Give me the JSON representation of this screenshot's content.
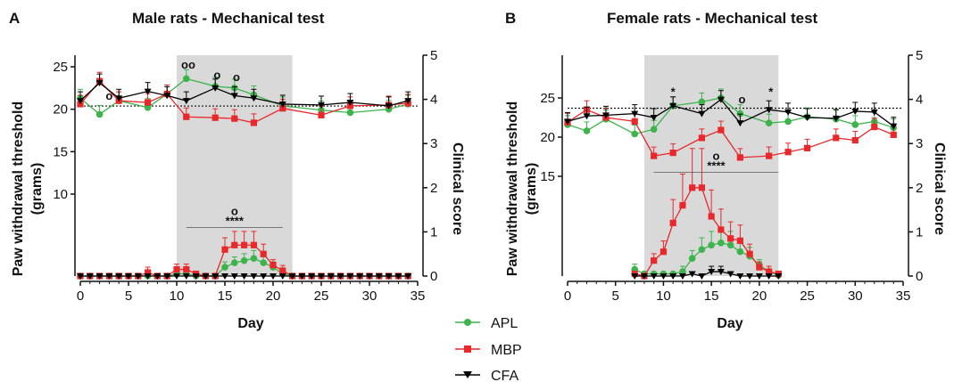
{
  "chart_data": [
    {
      "type": "line",
      "panel_label": "A",
      "title": "Male rats - Mechanical test",
      "xlabel": "Day",
      "ylabel": "Paw withdrawal threshold\n(grams)",
      "y2label": "Clinical score",
      "xlim": [
        0,
        35
      ],
      "xticks": [
        0,
        5,
        10,
        15,
        20,
        25,
        30,
        35
      ],
      "yticks_left": [
        10,
        15,
        20,
        25
      ],
      "yticks_right": [
        0,
        1,
        2,
        3,
        4,
        5
      ],
      "ylim_right": [
        0,
        5
      ],
      "baseline_line_y": 3.85,
      "shaded_region": [
        10,
        22
      ],
      "significance": {
        "x_range": [
          11,
          21
        ],
        "level": 1.1,
        "stars": "****",
        "circle": "o"
      },
      "threshold_series": [
        {
          "name": "APL",
          "x": [
            0,
            2,
            4,
            7,
            9,
            11,
            14,
            16,
            18,
            21,
            25,
            28,
            32,
            34
          ],
          "y": [
            21.3,
            19.4,
            21.0,
            20.2,
            21.8,
            23.6,
            22.7,
            22.5,
            21.7,
            20.4,
            19.9,
            19.6,
            20.0,
            20.6
          ]
        },
        {
          "name": "MBP",
          "x": [
            0,
            2,
            4,
            7,
            9,
            11,
            14,
            16,
            18,
            21,
            25,
            28,
            32,
            34
          ],
          "y": [
            20.6,
            23.3,
            21.0,
            20.8,
            21.8,
            19.1,
            19.0,
            18.9,
            18.4,
            20.1,
            19.3,
            20.4,
            20.5,
            20.7
          ]
        },
        {
          "name": "CFA",
          "x": [
            0,
            2,
            4,
            7,
            9,
            11,
            14,
            16,
            18,
            21,
            25,
            28,
            32,
            34
          ],
          "y": [
            21.0,
            23.1,
            21.3,
            22.1,
            21.6,
            21.0,
            22.5,
            21.6,
            21.3,
            20.6,
            20.5,
            20.8,
            20.4,
            21.0
          ]
        }
      ],
      "threshold_annotations": [
        {
          "x": 3,
          "y": 21.1,
          "text": "o"
        },
        {
          "x": 11.2,
          "y": 24.8,
          "text": "oo"
        },
        {
          "x": 14.2,
          "y": 23.6,
          "text": "o"
        },
        {
          "x": 16.2,
          "y": 23.3,
          "text": "o"
        }
      ],
      "score_series": [
        {
          "name": "APL",
          "x": [
            0,
            1,
            2,
            3,
            4,
            5,
            6,
            7,
            8,
            9,
            10,
            11,
            12,
            13,
            14,
            15,
            16,
            17,
            18,
            19,
            20,
            21,
            22,
            23,
            24,
            25,
            26,
            27,
            28,
            29,
            30,
            31,
            32,
            33,
            34
          ],
          "y": [
            0,
            0,
            0,
            0,
            0,
            0,
            0,
            0,
            0,
            0,
            0.05,
            0.05,
            0,
            0,
            0,
            0.2,
            0.3,
            0.35,
            0.4,
            0.3,
            0.2,
            0.05,
            0,
            0,
            0,
            0,
            0,
            0,
            0,
            0,
            0,
            0,
            0,
            0,
            0
          ]
        },
        {
          "name": "MBP",
          "x": [
            0,
            1,
            2,
            3,
            4,
            5,
            6,
            7,
            8,
            9,
            10,
            11,
            12,
            13,
            14,
            15,
            16,
            17,
            18,
            19,
            20,
            21,
            22,
            23,
            24,
            25,
            26,
            27,
            28,
            29,
            30,
            31,
            32,
            33,
            34
          ],
          "y": [
            0,
            0,
            0,
            0,
            0,
            0,
            0,
            0.08,
            0,
            0,
            0.15,
            0.15,
            0.05,
            0,
            0,
            0.6,
            0.7,
            0.7,
            0.7,
            0.5,
            0.25,
            0.12,
            0,
            0,
            0,
            0,
            0,
            0,
            0,
            0,
            0,
            0,
            0,
            0,
            0
          ]
        },
        {
          "name": "CFA",
          "x": [
            0,
            1,
            2,
            3,
            4,
            5,
            6,
            7,
            8,
            9,
            10,
            11,
            12,
            13,
            14,
            15,
            16,
            17,
            18,
            19,
            20,
            21,
            22,
            23,
            24,
            25,
            26,
            27,
            28,
            29,
            30,
            31,
            32,
            33,
            34
          ],
          "y": [
            0,
            0,
            0,
            0,
            0,
            0,
            0,
            0,
            0,
            0,
            0,
            0,
            0,
            0,
            0,
            0,
            0,
            0,
            0,
            0,
            0,
            0,
            0,
            0,
            0,
            0,
            0,
            0,
            0,
            0,
            0,
            0,
            0,
            0,
            0
          ]
        }
      ]
    },
    {
      "type": "line",
      "panel_label": "B",
      "title": "Female rats - Mechanical test",
      "xlabel": "Day",
      "ylabel": "Paw withdrawal threshold\n(grams)",
      "y2label": "Clinical score",
      "xlim": [
        0,
        35
      ],
      "xticks": [
        0,
        5,
        10,
        15,
        20,
        25,
        30,
        35
      ],
      "yticks_left": [
        15,
        20,
        25
      ],
      "yticks_right": [
        0,
        1,
        2,
        3,
        4,
        5
      ],
      "ylim_right": [
        0,
        5
      ],
      "baseline_line_y": 3.8,
      "shaded_region": [
        8,
        22
      ],
      "significance": {
        "x_range": [
          9,
          22
        ],
        "level": 2.35,
        "stars": "****",
        "circle": "o"
      },
      "threshold_series": [
        {
          "name": "APL",
          "x": [
            0,
            2,
            4,
            7,
            9,
            11,
            14,
            16,
            18,
            21,
            23,
            25,
            28,
            30,
            32,
            34
          ],
          "y": [
            21.6,
            20.8,
            22.3,
            20.4,
            21.0,
            24.0,
            24.5,
            25.0,
            23.0,
            21.8,
            22.0,
            22.6,
            22.3,
            21.6,
            22.0,
            21.2
          ]
        },
        {
          "name": "MBP",
          "x": [
            0,
            2,
            4,
            7,
            9,
            11,
            14,
            16,
            18,
            21,
            23,
            25,
            28,
            30,
            32,
            34
          ],
          "y": [
            21.9,
            23.5,
            22.5,
            22.0,
            17.6,
            18.0,
            19.9,
            20.9,
            17.4,
            17.6,
            18.1,
            18.6,
            19.9,
            19.6,
            21.3,
            20.3
          ]
        },
        {
          "name": "CFA",
          "x": [
            0,
            2,
            4,
            7,
            9,
            11,
            14,
            16,
            18,
            21,
            23,
            25,
            28,
            30,
            32,
            34
          ],
          "y": [
            22.0,
            22.7,
            22.8,
            23.0,
            22.5,
            24.0,
            23.0,
            24.8,
            21.8,
            23.5,
            23.2,
            22.5,
            22.4,
            23.3,
            23.2,
            21.4
          ]
        }
      ],
      "threshold_annotations": [
        {
          "x": 11,
          "y": 25.3,
          "text": "*"
        },
        {
          "x": 18.2,
          "y": 24.3,
          "text": "o"
        },
        {
          "x": 21.2,
          "y": 25.3,
          "text": "*"
        }
      ],
      "score_series": [
        {
          "name": "APL",
          "x": [
            7,
            8,
            9,
            10,
            11,
            12,
            13,
            14,
            15,
            16,
            17,
            18,
            19,
            20,
            21,
            22
          ],
          "y": [
            0.15,
            0.05,
            0.05,
            0.05,
            0.05,
            0.1,
            0.4,
            0.6,
            0.7,
            0.75,
            0.7,
            0.55,
            0.45,
            0.25,
            0.1,
            0.02
          ]
        },
        {
          "name": "MBP",
          "x": [
            7,
            8,
            9,
            10,
            11,
            12,
            13,
            14,
            15,
            16,
            17,
            18,
            19,
            20,
            21,
            22
          ],
          "y": [
            0.05,
            0,
            0.35,
            0.55,
            1.2,
            1.6,
            2.0,
            2.0,
            1.35,
            1.05,
            0.85,
            0.8,
            0.5,
            0.2,
            0.1,
            0.05
          ]
        },
        {
          "name": "CFA",
          "x": [
            7,
            8,
            9,
            10,
            11,
            12,
            13,
            14,
            15,
            16,
            17,
            18,
            19,
            20,
            21,
            22
          ],
          "y": [
            0,
            0,
            0,
            0,
            0,
            0,
            0.05,
            0,
            0.1,
            0.1,
            0.05,
            0,
            0,
            0,
            0,
            0
          ]
        }
      ]
    }
  ],
  "legend": [
    {
      "name": "APL",
      "color": "#3cb44b",
      "marker": "circle"
    },
    {
      "name": "MBP",
      "color": "#e8282b",
      "marker": "square"
    },
    {
      "name": "CFA",
      "color": "#000000",
      "marker": "triangle-down"
    }
  ],
  "colors": {
    "APL": "#3cb44b",
    "MBP": "#e8282b",
    "CFA": "#000000",
    "shade": "#d9d9d9"
  }
}
